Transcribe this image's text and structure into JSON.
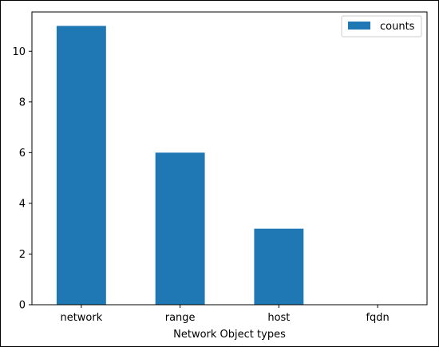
{
  "chart_data": {
    "type": "bar",
    "categories": [
      "network",
      "range",
      "host",
      "fqdn"
    ],
    "series": [
      {
        "name": "counts",
        "values": [
          11,
          6,
          3,
          0
        ],
        "color": "#1f77b4"
      }
    ],
    "xlabel": "Network Object types",
    "ylabel": "",
    "ylim": [
      0,
      11.55
    ],
    "yticks": [
      0,
      2,
      4,
      6,
      8,
      10
    ],
    "legend": "top-right",
    "grid": false
  }
}
